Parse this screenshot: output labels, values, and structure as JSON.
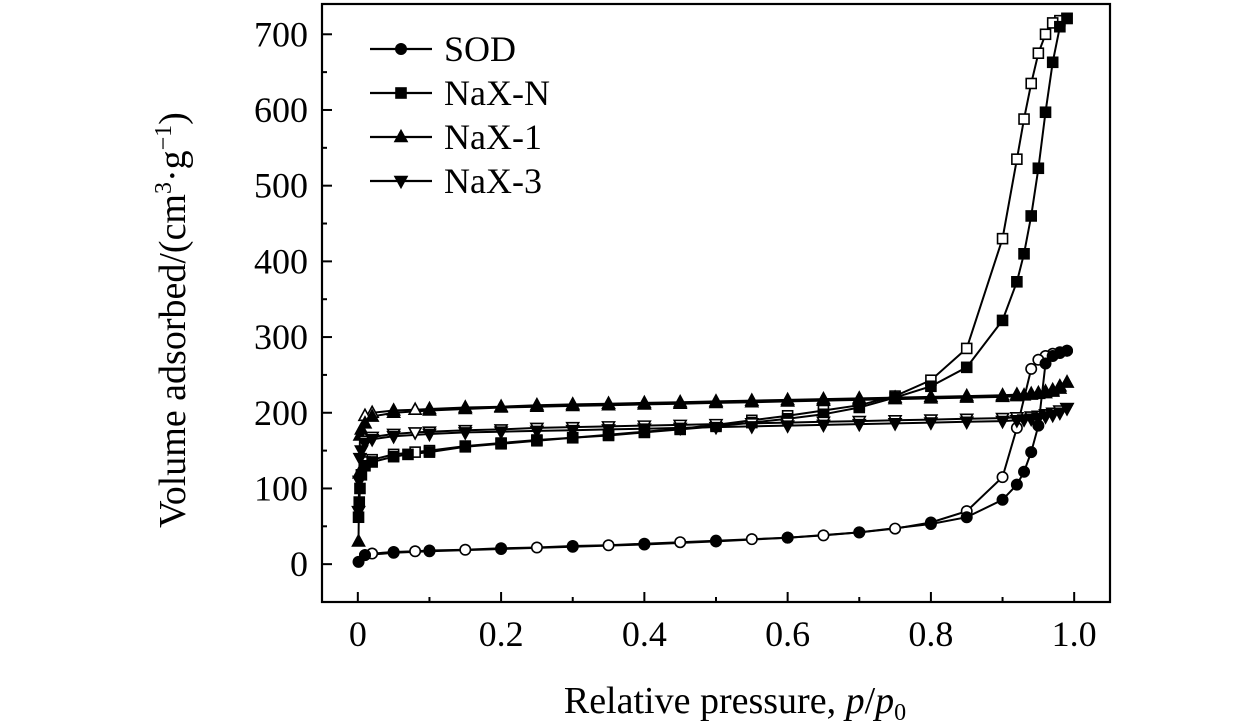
{
  "chart_data": {
    "type": "line",
    "title": "",
    "xlabel": {
      "main": "Relative pressure, ",
      "p": "p",
      "slash": "/",
      "p0": "p",
      "sub": "0"
    },
    "ylabel": {
      "main": "Volume adsorbed/(cm",
      "sup3": "3",
      "mid": "·g",
      "supm1": "−1",
      "close": ")"
    },
    "xlim": [
      -0.05,
      1.05
    ],
    "ylim": [
      -50,
      740
    ],
    "xticks": [
      0,
      0.2,
      0.4,
      0.6,
      0.8,
      1.0
    ],
    "xtick_labels": [
      "0",
      "0.2",
      "0.4",
      "0.6",
      "0.8",
      "1.0"
    ],
    "yticks": [
      0,
      100,
      200,
      300,
      400,
      500,
      600,
      700
    ],
    "ytick_labels": [
      "0",
      "100",
      "200",
      "300",
      "400",
      "500",
      "600",
      "700"
    ],
    "legend_position": "top-left",
    "series": [
      {
        "name": "SOD",
        "marker": "circle",
        "adsorption": [
          [
            0.001,
            3
          ],
          [
            0.01,
            12
          ],
          [
            0.05,
            15
          ],
          [
            0.1,
            17
          ],
          [
            0.2,
            20
          ],
          [
            0.3,
            23
          ],
          [
            0.4,
            26
          ],
          [
            0.5,
            30
          ],
          [
            0.6,
            35
          ],
          [
            0.7,
            42
          ],
          [
            0.8,
            53
          ],
          [
            0.85,
            62
          ],
          [
            0.9,
            85
          ],
          [
            0.92,
            105
          ],
          [
            0.93,
            122
          ],
          [
            0.94,
            148
          ],
          [
            0.95,
            183
          ],
          [
            0.96,
            265
          ],
          [
            0.97,
            275
          ],
          [
            0.98,
            279
          ],
          [
            0.99,
            282
          ]
        ],
        "desorption": [
          [
            0.99,
            282
          ],
          [
            0.98,
            280
          ],
          [
            0.97,
            278
          ],
          [
            0.96,
            275
          ],
          [
            0.95,
            270
          ],
          [
            0.94,
            258
          ],
          [
            0.92,
            180
          ],
          [
            0.9,
            115
          ],
          [
            0.85,
            70
          ],
          [
            0.8,
            55
          ],
          [
            0.75,
            47
          ],
          [
            0.7,
            42
          ],
          [
            0.65,
            38
          ],
          [
            0.6,
            35
          ],
          [
            0.55,
            33
          ],
          [
            0.5,
            31
          ],
          [
            0.45,
            29
          ],
          [
            0.4,
            27
          ],
          [
            0.35,
            25
          ],
          [
            0.3,
            24
          ],
          [
            0.25,
            22
          ],
          [
            0.2,
            21
          ],
          [
            0.15,
            19
          ],
          [
            0.1,
            18
          ],
          [
            0.08,
            17
          ],
          [
            0.05,
            16
          ],
          [
            0.02,
            14
          ],
          [
            0.01,
            12
          ]
        ]
      },
      {
        "name": "NaX-N",
        "marker": "square",
        "adsorption": [
          [
            0.001,
            62
          ],
          [
            0.002,
            82
          ],
          [
            0.003,
            100
          ],
          [
            0.005,
            118
          ],
          [
            0.01,
            130
          ],
          [
            0.02,
            135
          ],
          [
            0.05,
            142
          ],
          [
            0.07,
            145
          ],
          [
            0.1,
            148
          ],
          [
            0.15,
            155
          ],
          [
            0.2,
            159
          ],
          [
            0.25,
            163
          ],
          [
            0.3,
            167
          ],
          [
            0.35,
            170
          ],
          [
            0.4,
            174
          ],
          [
            0.45,
            178
          ],
          [
            0.5,
            182
          ],
          [
            0.55,
            187
          ],
          [
            0.6,
            192
          ],
          [
            0.65,
            198
          ],
          [
            0.7,
            207
          ],
          [
            0.75,
            220
          ],
          [
            0.8,
            235
          ],
          [
            0.85,
            260
          ],
          [
            0.9,
            322
          ],
          [
            0.92,
            373
          ],
          [
            0.93,
            410
          ],
          [
            0.94,
            460
          ],
          [
            0.95,
            523
          ],
          [
            0.96,
            597
          ],
          [
            0.97,
            663
          ],
          [
            0.98,
            710
          ],
          [
            0.99,
            721
          ]
        ],
        "desorption": [
          [
            0.99,
            721
          ],
          [
            0.98,
            718
          ],
          [
            0.97,
            715
          ],
          [
            0.96,
            700
          ],
          [
            0.95,
            675
          ],
          [
            0.94,
            635
          ],
          [
            0.93,
            588
          ],
          [
            0.92,
            535
          ],
          [
            0.9,
            430
          ],
          [
            0.85,
            285
          ],
          [
            0.8,
            243
          ],
          [
            0.75,
            222
          ],
          [
            0.7,
            210
          ],
          [
            0.65,
            203
          ],
          [
            0.6,
            196
          ],
          [
            0.55,
            190
          ],
          [
            0.5,
            184
          ],
          [
            0.45,
            179
          ],
          [
            0.4,
            175
          ],
          [
            0.35,
            171
          ],
          [
            0.3,
            167
          ],
          [
            0.25,
            164
          ],
          [
            0.2,
            160
          ],
          [
            0.15,
            156
          ],
          [
            0.1,
            150
          ],
          [
            0.08,
            148
          ],
          [
            0.05,
            145
          ],
          [
            0.02,
            138
          ],
          [
            0.01,
            135
          ]
        ]
      },
      {
        "name": "NaX-1",
        "marker": "triangle-up",
        "adsorption": [
          [
            0.001,
            30
          ],
          [
            0.002,
            120
          ],
          [
            0.003,
            170
          ],
          [
            0.005,
            178
          ],
          [
            0.01,
            186
          ],
          [
            0.02,
            195
          ],
          [
            0.05,
            200
          ],
          [
            0.1,
            203
          ],
          [
            0.15,
            205
          ],
          [
            0.2,
            207
          ],
          [
            0.25,
            208
          ],
          [
            0.3,
            209
          ],
          [
            0.35,
            210
          ],
          [
            0.4,
            211
          ],
          [
            0.45,
            212
          ],
          [
            0.5,
            213
          ],
          [
            0.55,
            214
          ],
          [
            0.6,
            215
          ],
          [
            0.65,
            216
          ],
          [
            0.7,
            217
          ],
          [
            0.75,
            218
          ],
          [
            0.8,
            219
          ],
          [
            0.85,
            220
          ],
          [
            0.9,
            221
          ],
          [
            0.92,
            222
          ],
          [
            0.93,
            223
          ],
          [
            0.94,
            224
          ],
          [
            0.95,
            225
          ],
          [
            0.96,
            226
          ],
          [
            0.97,
            228
          ],
          [
            0.98,
            232
          ],
          [
            0.99,
            240
          ]
        ],
        "desorption": [
          [
            0.99,
            240
          ],
          [
            0.98,
            235
          ],
          [
            0.97,
            230
          ],
          [
            0.96,
            228
          ],
          [
            0.95,
            226
          ],
          [
            0.94,
            225
          ],
          [
            0.92,
            224
          ],
          [
            0.9,
            223
          ],
          [
            0.85,
            222
          ],
          [
            0.8,
            221
          ],
          [
            0.75,
            220
          ],
          [
            0.7,
            219
          ],
          [
            0.65,
            218
          ],
          [
            0.6,
            217
          ],
          [
            0.55,
            216
          ],
          [
            0.5,
            215
          ],
          [
            0.45,
            214
          ],
          [
            0.4,
            213
          ],
          [
            0.35,
            212
          ],
          [
            0.3,
            211
          ],
          [
            0.25,
            210
          ],
          [
            0.2,
            208
          ],
          [
            0.15,
            207
          ],
          [
            0.1,
            205
          ],
          [
            0.08,
            204
          ],
          [
            0.05,
            203
          ],
          [
            0.02,
            200
          ],
          [
            0.01,
            196
          ]
        ]
      },
      {
        "name": "NaX-3",
        "marker": "triangle-down",
        "adsorption": [
          [
            0.001,
            70
          ],
          [
            0.002,
            110
          ],
          [
            0.003,
            140
          ],
          [
            0.005,
            150
          ],
          [
            0.01,
            160
          ],
          [
            0.02,
            165
          ],
          [
            0.05,
            169
          ],
          [
            0.1,
            172
          ],
          [
            0.15,
            174
          ],
          [
            0.2,
            175
          ],
          [
            0.25,
            176
          ],
          [
            0.3,
            177
          ],
          [
            0.35,
            178
          ],
          [
            0.4,
            179
          ],
          [
            0.45,
            180
          ],
          [
            0.5,
            181
          ],
          [
            0.55,
            182
          ],
          [
            0.6,
            183
          ],
          [
            0.65,
            184
          ],
          [
            0.7,
            185
          ],
          [
            0.75,
            186
          ],
          [
            0.8,
            187
          ],
          [
            0.85,
            188
          ],
          [
            0.9,
            189
          ],
          [
            0.92,
            190
          ],
          [
            0.93,
            191
          ],
          [
            0.94,
            192
          ],
          [
            0.95,
            193
          ],
          [
            0.96,
            195
          ],
          [
            0.97,
            197
          ],
          [
            0.98,
            200
          ],
          [
            0.99,
            206
          ]
        ],
        "desorption": [
          [
            0.99,
            206
          ],
          [
            0.98,
            203
          ],
          [
            0.97,
            200
          ],
          [
            0.96,
            198
          ],
          [
            0.95,
            196
          ],
          [
            0.94,
            195
          ],
          [
            0.92,
            194
          ],
          [
            0.9,
            193
          ],
          [
            0.85,
            192
          ],
          [
            0.8,
            191
          ],
          [
            0.75,
            190
          ],
          [
            0.7,
            189
          ],
          [
            0.65,
            188
          ],
          [
            0.6,
            187
          ],
          [
            0.55,
            186
          ],
          [
            0.5,
            185
          ],
          [
            0.45,
            184
          ],
          [
            0.4,
            183
          ],
          [
            0.35,
            182
          ],
          [
            0.3,
            181
          ],
          [
            0.25,
            180
          ],
          [
            0.2,
            178
          ],
          [
            0.15,
            177
          ],
          [
            0.1,
            175
          ],
          [
            0.08,
            174
          ],
          [
            0.05,
            172
          ],
          [
            0.02,
            168
          ],
          [
            0.01,
            163
          ]
        ]
      }
    ]
  }
}
